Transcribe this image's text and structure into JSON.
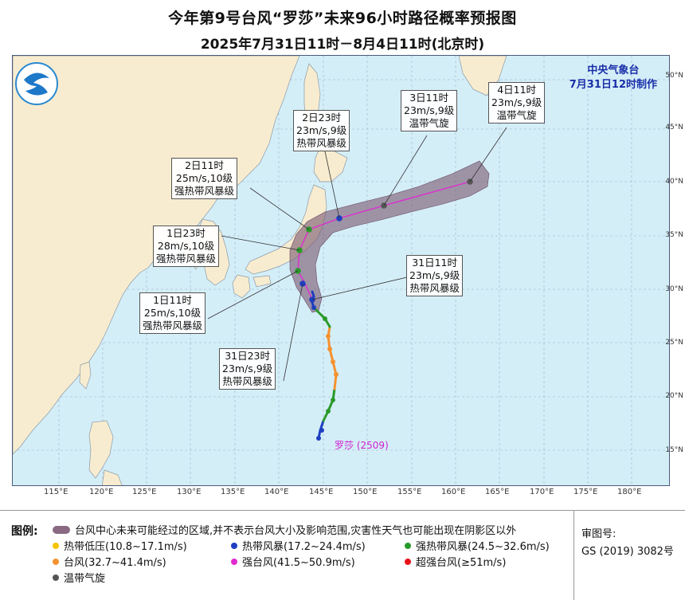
{
  "title": {
    "main": "今年第9号台风“罗莎”未来96小时路径概率预报图",
    "sub": "2025年7月31日11时－8月4日11时(北京时)"
  },
  "agency": {
    "name": "中央气象台",
    "issued": "7月31日12时制作"
  },
  "typhoon_label": "罗莎",
  "typhoon_code": "(2509)",
  "axes": {
    "lon_labels": [
      "115°E",
      "120°E",
      "125°E",
      "130°E",
      "135°E",
      "140°E",
      "145°E",
      "150°E",
      "155°E",
      "160°E",
      "165°E",
      "170°E",
      "175°E",
      "180°E"
    ],
    "lat_labels": [
      "15°N",
      "20°N",
      "25°N",
      "30°N",
      "35°N",
      "40°N",
      "45°N",
      "50°N"
    ]
  },
  "forecast_points": [
    {
      "time": "31日11时",
      "speed": "23m/s,9级",
      "level": "热带风暴级"
    },
    {
      "time": "31日23时",
      "speed": "23m/s,9级",
      "level": "热带风暴级"
    },
    {
      "time": "1日11时",
      "speed": "25m/s,10级",
      "level": "强热带风暴级"
    },
    {
      "time": "1日23时",
      "speed": "28m/s,10级",
      "level": "强热带风暴级"
    },
    {
      "time": "2日11时",
      "speed": "25m/s,10级",
      "level": "强热带风暴级"
    },
    {
      "time": "2日23时",
      "speed": "23m/s,9级",
      "level": "热带风暴级"
    },
    {
      "time": "3日11时",
      "speed": "23m/s,9级",
      "level": "温带气旋"
    },
    {
      "time": "4日11时",
      "speed": "23m/s,9级",
      "level": "温带气旋"
    }
  ],
  "legend": {
    "title": "图例:",
    "shade_desc": "台风中心未来可能经过的区域,并不表示台风大小及影响范围,灾害性天气也可能出现在阴影区以外",
    "items": [
      {
        "label": "热带低压(10.8~17.1m/s)",
        "color": "#f5c400"
      },
      {
        "label": "热带风暴(17.2~24.4m/s)",
        "color": "#1f3fbf"
      },
      {
        "label": "强热带风暴(24.5~32.6m/s)",
        "color": "#2a9a2a"
      },
      {
        "label": "台风(32.7~41.4m/s)",
        "color": "#f59230"
      },
      {
        "label": "强台风(41.5~50.9m/s)",
        "color": "#e02ad0"
      },
      {
        "label": "超强台风(≥51m/s)",
        "color": "#e8101a"
      },
      {
        "label": "温带气旋",
        "color": "#555555"
      }
    ]
  },
  "approval": {
    "label": "审图号:",
    "code": "GS (2019) 3082号"
  },
  "colors": {
    "ocean": "#d4eef8",
    "land": "#f8ecd0",
    "grid": "#9bb0c8",
    "cone": "#7a5a73",
    "track": "#e02ad0",
    "agency": "#1a2fa8"
  }
}
